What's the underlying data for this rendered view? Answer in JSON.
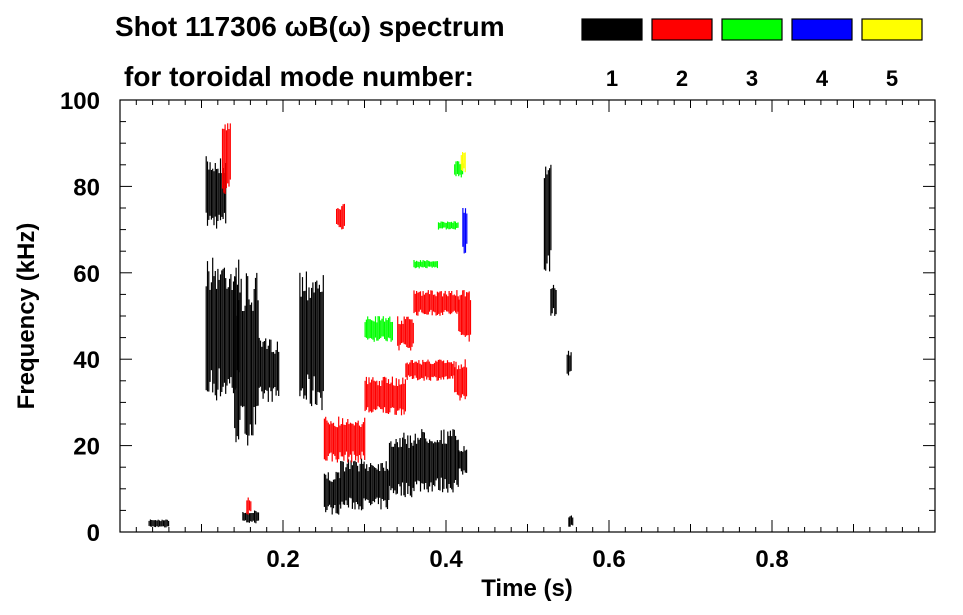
{
  "chart_data": {
    "type": "heatmap",
    "title_line1": "Shot 117306 ωB(ω) spectrum",
    "title_line2": "for toroidal mode number:",
    "xlabel": "Time (s)",
    "ylabel": "Frequency (kHz)",
    "xlim": [
      0.0,
      1.0
    ],
    "ylim": [
      0,
      100
    ],
    "x_ticks": [
      {
        "value": 0.2,
        "label": "0.2"
      },
      {
        "value": 0.4,
        "label": "0.4"
      },
      {
        "value": 0.6,
        "label": "0.6"
      },
      {
        "value": 0.8,
        "label": "0.8"
      }
    ],
    "y_ticks": [
      {
        "value": 0,
        "label": "0"
      },
      {
        "value": 20,
        "label": "20"
      },
      {
        "value": 40,
        "label": "40"
      },
      {
        "value": 60,
        "label": "60"
      },
      {
        "value": 80,
        "label": "80"
      },
      {
        "value": 100,
        "label": "100"
      }
    ],
    "legend": [
      {
        "label": "1",
        "color": "#000000"
      },
      {
        "label": "2",
        "color": "#ff0000"
      },
      {
        "label": "3",
        "color": "#00ff00"
      },
      {
        "label": "4",
        "color": "#0000ff"
      },
      {
        "label": "5",
        "color": "#ffff00"
      }
    ],
    "legend_placement": "top-right",
    "grid": false,
    "regions": [
      {
        "mode": 1,
        "t": [
          0.105,
          0.13
        ],
        "f": [
          70,
          87
        ]
      },
      {
        "mode": 1,
        "t": [
          0.105,
          0.145
        ],
        "f": [
          30,
          64
        ]
      },
      {
        "mode": 1,
        "t": [
          0.14,
          0.17
        ],
        "f": [
          20,
          60
        ]
      },
      {
        "mode": 1,
        "t": [
          0.17,
          0.195
        ],
        "f": [
          30,
          45
        ]
      },
      {
        "mode": 1,
        "t": [
          0.22,
          0.25
        ],
        "f": [
          28,
          62
        ]
      },
      {
        "mode": 1,
        "t": [
          0.25,
          0.27
        ],
        "f": [
          4,
          14
        ]
      },
      {
        "mode": 1,
        "t": [
          0.27,
          0.33
        ],
        "f": [
          5,
          17
        ]
      },
      {
        "mode": 1,
        "t": [
          0.33,
          0.36
        ],
        "f": [
          8,
          23
        ]
      },
      {
        "mode": 1,
        "t": [
          0.36,
          0.415
        ],
        "f": [
          9,
          24
        ]
      },
      {
        "mode": 1,
        "t": [
          0.415,
          0.425
        ],
        "f": [
          13,
          20
        ]
      },
      {
        "mode": 1,
        "t": [
          0.52,
          0.528
        ],
        "f": [
          60,
          85
        ]
      },
      {
        "mode": 1,
        "t": [
          0.528,
          0.535
        ],
        "f": [
          50,
          58
        ]
      },
      {
        "mode": 1,
        "t": [
          0.548,
          0.553
        ],
        "f": [
          36,
          42
        ]
      },
      {
        "mode": 1,
        "t": [
          0.55,
          0.556
        ],
        "f": [
          1,
          4
        ]
      },
      {
        "mode": 1,
        "t": [
          0.15,
          0.17
        ],
        "f": [
          2,
          5
        ]
      },
      {
        "mode": 1,
        "t": [
          0.035,
          0.06
        ],
        "f": [
          1,
          3
        ]
      },
      {
        "mode": 2,
        "t": [
          0.125,
          0.135
        ],
        "f": [
          78,
          95
        ]
      },
      {
        "mode": 2,
        "t": [
          0.25,
          0.3
        ],
        "f": [
          16,
          27
        ]
      },
      {
        "mode": 2,
        "t": [
          0.3,
          0.35
        ],
        "f": [
          27,
          36
        ]
      },
      {
        "mode": 2,
        "t": [
          0.35,
          0.41
        ],
        "f": [
          35,
          40
        ]
      },
      {
        "mode": 2,
        "t": [
          0.41,
          0.425
        ],
        "f": [
          30,
          40
        ]
      },
      {
        "mode": 2,
        "t": [
          0.34,
          0.36
        ],
        "f": [
          42,
          50
        ]
      },
      {
        "mode": 2,
        "t": [
          0.36,
          0.415
        ],
        "f": [
          50,
          56
        ]
      },
      {
        "mode": 2,
        "t": [
          0.415,
          0.43
        ],
        "f": [
          44,
          56
        ]
      },
      {
        "mode": 2,
        "t": [
          0.265,
          0.275
        ],
        "f": [
          70,
          76
        ]
      },
      {
        "mode": 2,
        "t": [
          0.155,
          0.16
        ],
        "f": [
          4,
          8
        ]
      },
      {
        "mode": 3,
        "t": [
          0.3,
          0.335
        ],
        "f": [
          44,
          50
        ]
      },
      {
        "mode": 3,
        "t": [
          0.39,
          0.415
        ],
        "f": [
          70,
          72
        ]
      },
      {
        "mode": 3,
        "t": [
          0.36,
          0.39
        ],
        "f": [
          61,
          63
        ]
      },
      {
        "mode": 3,
        "t": [
          0.41,
          0.42
        ],
        "f": [
          82,
          86
        ]
      },
      {
        "mode": 4,
        "t": [
          0.42,
          0.426
        ],
        "f": [
          64,
          75
        ]
      },
      {
        "mode": 5,
        "t": [
          0.418,
          0.424
        ],
        "f": [
          83,
          88
        ]
      }
    ]
  }
}
